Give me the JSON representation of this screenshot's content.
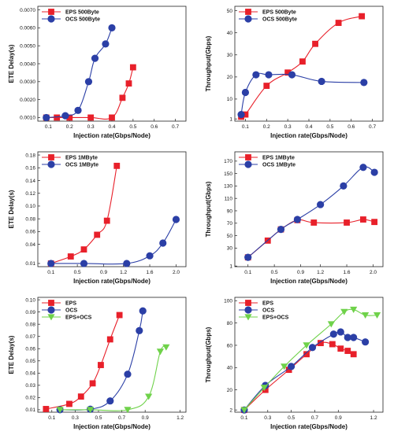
{
  "colors": {
    "eps": "#e8202a",
    "ocs": "#2b3fa6",
    "both": "#6fd24a",
    "axis": "#222222"
  },
  "chart_data": [
    {
      "type": "line",
      "panel": "row1-left",
      "xlabel": "Injection rate(Gbps/Node)",
      "ylabel": "ETE Delay(s)",
      "xlim": [
        0.05,
        0.75
      ],
      "ylim": [
        0.0008,
        0.0072
      ],
      "xticks": [
        0.1,
        0.2,
        0.3,
        0.4,
        0.5,
        0.6,
        0.7
      ],
      "xtick_labels": [
        "0.1",
        "0.2",
        "0.3",
        "0.4",
        "0.5",
        "0.6",
        "0.7"
      ],
      "yticks": [
        0.001,
        0.002,
        0.003,
        0.004,
        0.005,
        0.006,
        0.007
      ],
      "ytick_labels": [
        "0.0010",
        "0.0020",
        "0.0030",
        "0.0040",
        "0.0050",
        "0.0060",
        "0.0070"
      ],
      "legend": "top-left",
      "series": [
        {
          "name": "EPS 500Byte",
          "marker": "square",
          "colorKey": "eps",
          "x": [
            0.09,
            0.14,
            0.2,
            0.3,
            0.4,
            0.45,
            0.48,
            0.5
          ],
          "y": [
            0.001,
            0.001,
            0.001,
            0.001,
            0.001,
            0.0021,
            0.0029,
            0.0038
          ]
        },
        {
          "name": "OCS 500Byte",
          "marker": "circle",
          "colorKey": "ocs",
          "x": [
            0.09,
            0.18,
            0.24,
            0.29,
            0.32,
            0.37,
            0.4
          ],
          "y": [
            0.001,
            0.0011,
            0.0014,
            0.003,
            0.0043,
            0.0051,
            0.006
          ]
        }
      ]
    },
    {
      "type": "line",
      "panel": "row1-right",
      "xlabel": "Injection rate(Gbps/Node)",
      "ylabel": "Throughput(Gbps)",
      "xlim": [
        0.05,
        0.75
      ],
      "ylim": [
        0,
        52
      ],
      "xticks": [
        0.1,
        0.2,
        0.3,
        0.4,
        0.5,
        0.6,
        0.7
      ],
      "xtick_labels": [
        "0.1",
        "0.2",
        "0.3",
        "0.4",
        "0.5",
        "0.6",
        "0.7"
      ],
      "yticks": [
        1,
        10,
        20,
        30,
        40,
        50
      ],
      "ytick_labels": [
        "1",
        "10",
        "20",
        "30",
        "40",
        "50"
      ],
      "legend": "top-left",
      "series": [
        {
          "name": "EPS 500Byte",
          "marker": "square",
          "colorKey": "eps",
          "x": [
            0.08,
            0.1,
            0.2,
            0.3,
            0.37,
            0.43,
            0.54,
            0.65
          ],
          "y": [
            2,
            3,
            16,
            22,
            27,
            35,
            44.5,
            47.5
          ]
        },
        {
          "name": "OCS 500Byte",
          "marker": "circle",
          "colorKey": "ocs",
          "x": [
            0.08,
            0.1,
            0.15,
            0.21,
            0.32,
            0.46,
            0.66
          ],
          "y": [
            3,
            13,
            21,
            21,
            21,
            18,
            17.5
          ]
        }
      ]
    },
    {
      "type": "line",
      "panel": "row2-left",
      "xlabel": "Injection rate(Gbps/Node)",
      "ylabel": "ETE Delay(s)",
      "xlim": [
        -0.1,
        2.15
      ],
      "ylim": [
        0.005,
        0.185
      ],
      "xticks": [
        0.1,
        0.5,
        0.9,
        1.2,
        1.6,
        2.0
      ],
      "xtick_labels": [
        "0.1",
        "0.5",
        "0.9",
        "1.2",
        "1.6",
        "2.0"
      ],
      "yticks": [
        0.01,
        0.04,
        0.06,
        0.08,
        0.1,
        0.12,
        0.14,
        0.16,
        0.18
      ],
      "ytick_labels": [
        "0.01",
        "0.04",
        "0.06",
        "0.08",
        "0.10",
        "0.12",
        "0.14",
        "0.16",
        "0.18"
      ],
      "legend": "top-left",
      "series": [
        {
          "name": "EPS 1MByte",
          "marker": "square",
          "colorKey": "eps",
          "x": [
            0.1,
            0.4,
            0.6,
            0.8,
            0.95,
            1.1
          ],
          "y": [
            0.01,
            0.021,
            0.032,
            0.055,
            0.077,
            0.163
          ]
        },
        {
          "name": "OCS 1MByte",
          "marker": "circle",
          "colorKey": "ocs",
          "x": [
            0.1,
            0.6,
            1.25,
            1.6,
            1.8,
            2.0
          ],
          "y": [
            0.01,
            0.01,
            0.01,
            0.022,
            0.042,
            0.079
          ]
        }
      ]
    },
    {
      "type": "line",
      "panel": "row2-right",
      "xlabel": "Injection rate(Gbps/Node)",
      "ylabel": "Throughput(Gbps)",
      "xlim": [
        -0.1,
        2.15
      ],
      "ylim": [
        0,
        185
      ],
      "xticks": [
        0.1,
        0.5,
        0.9,
        1.2,
        1.6,
        2.0
      ],
      "xtick_labels": [
        "0.1",
        "0.5",
        "0.9",
        "1.2",
        "1.6",
        "2.0"
      ],
      "yticks": [
        1,
        30,
        50,
        70,
        90,
        110,
        130,
        150,
        170
      ],
      "ytick_labels": [
        "1",
        "30",
        "50",
        "70",
        "90",
        "110",
        "130",
        "150",
        "170"
      ],
      "legend": "top-left",
      "series": [
        {
          "name": "EPS 1MByte",
          "marker": "square",
          "colorKey": "eps",
          "x": [
            0.1,
            0.4,
            0.6,
            0.85,
            1.1,
            1.6,
            1.85,
            2.02
          ],
          "y": [
            15,
            42,
            60,
            75,
            71,
            71,
            76,
            72
          ]
        },
        {
          "name": "OCS 1MByte",
          "marker": "circle",
          "colorKey": "ocs",
          "x": [
            0.1,
            0.6,
            0.85,
            1.2,
            1.55,
            1.85,
            2.02
          ],
          "y": [
            15,
            60,
            76,
            100,
            130,
            160,
            152
          ]
        }
      ]
    },
    {
      "type": "line",
      "panel": "row3-left",
      "xlabel": "Injection rate(Gbps/Node)",
      "ylabel": "ETE Delay(s)",
      "xlim": [
        -0.02,
        1.25
      ],
      "ylim": [
        0.008,
        0.102
      ],
      "xticks": [
        0.1,
        0.3,
        0.5,
        0.7,
        0.9,
        1.2
      ],
      "xtick_labels": [
        "0.1",
        "0.3",
        "0.5",
        "0.7",
        "0.9",
        "1.2"
      ],
      "yticks": [
        0.01,
        0.02,
        0.03,
        0.04,
        0.05,
        0.06,
        0.07,
        0.08,
        0.09,
        0.1
      ],
      "ytick_labels": [
        "0.01",
        "0.02",
        "0.03",
        "0.04",
        "0.05",
        "0.06",
        "0.07",
        "0.08",
        "0.09",
        "0.10"
      ],
      "legend": "top-left",
      "series": [
        {
          "name": "EPS",
          "marker": "square",
          "colorKey": "eps",
          "x": [
            0.05,
            0.25,
            0.35,
            0.45,
            0.52,
            0.6,
            0.68
          ],
          "y": [
            0.0106,
            0.0148,
            0.0208,
            0.0316,
            0.0466,
            0.0676,
            0.0875
          ]
        },
        {
          "name": "OCS",
          "marker": "circle",
          "colorKey": "ocs",
          "x": [
            0.17,
            0.43,
            0.6,
            0.75,
            0.85,
            0.88
          ],
          "y": [
            0.01,
            0.0104,
            0.0172,
            0.0391,
            0.0747,
            0.0909
          ]
        },
        {
          "name": "EPS+OCS",
          "marker": "triangle",
          "colorKey": "both",
          "x": [
            0.17,
            0.43,
            0.75,
            0.93,
            1.03,
            1.08
          ],
          "y": [
            0.01,
            0.01,
            0.01,
            0.0208,
            0.0576,
            0.0612
          ]
        }
      ]
    },
    {
      "type": "line",
      "panel": "row3-right",
      "xlabel": "Injection rate(Gbps/Node)",
      "ylabel": "Throughput(Gbps)",
      "xlim": [
        0.02,
        1.28
      ],
      "ylim": [
        0,
        103
      ],
      "xticks": [
        0.1,
        0.3,
        0.5,
        0.7,
        0.9,
        1.2
      ],
      "xtick_labels": [
        "0.1",
        "0.3",
        "0.5",
        "0.7",
        "0.9",
        "1.2"
      ],
      "yticks": [
        2,
        20,
        40,
        60,
        80,
        100
      ],
      "ytick_labels": [
        "2",
        "20",
        "40",
        "60",
        "80",
        "100"
      ],
      "legend": "top-left",
      "series": [
        {
          "name": "EPS",
          "marker": "square",
          "colorKey": "eps",
          "x": [
            0.1,
            0.28,
            0.48,
            0.63,
            0.75,
            0.85,
            0.92,
            0.98,
            1.03
          ],
          "y": [
            2,
            20,
            38,
            52,
            62,
            61,
            57,
            55,
            52
          ]
        },
        {
          "name": "OCS",
          "marker": "circle",
          "colorKey": "ocs",
          "x": [
            0.1,
            0.28,
            0.5,
            0.68,
            0.86,
            0.92,
            0.98,
            1.03,
            1.13
          ],
          "y": [
            2,
            24,
            41,
            58,
            70,
            72,
            67,
            67,
            63
          ]
        },
        {
          "name": "EPS+OCS",
          "marker": "triangle",
          "colorKey": "both",
          "x": [
            0.1,
            0.27,
            0.44,
            0.63,
            0.84,
            0.95,
            1.03,
            1.13,
            1.23
          ],
          "y": [
            2,
            22,
            41,
            60,
            79,
            90,
            92,
            87,
            87
          ]
        }
      ]
    }
  ]
}
